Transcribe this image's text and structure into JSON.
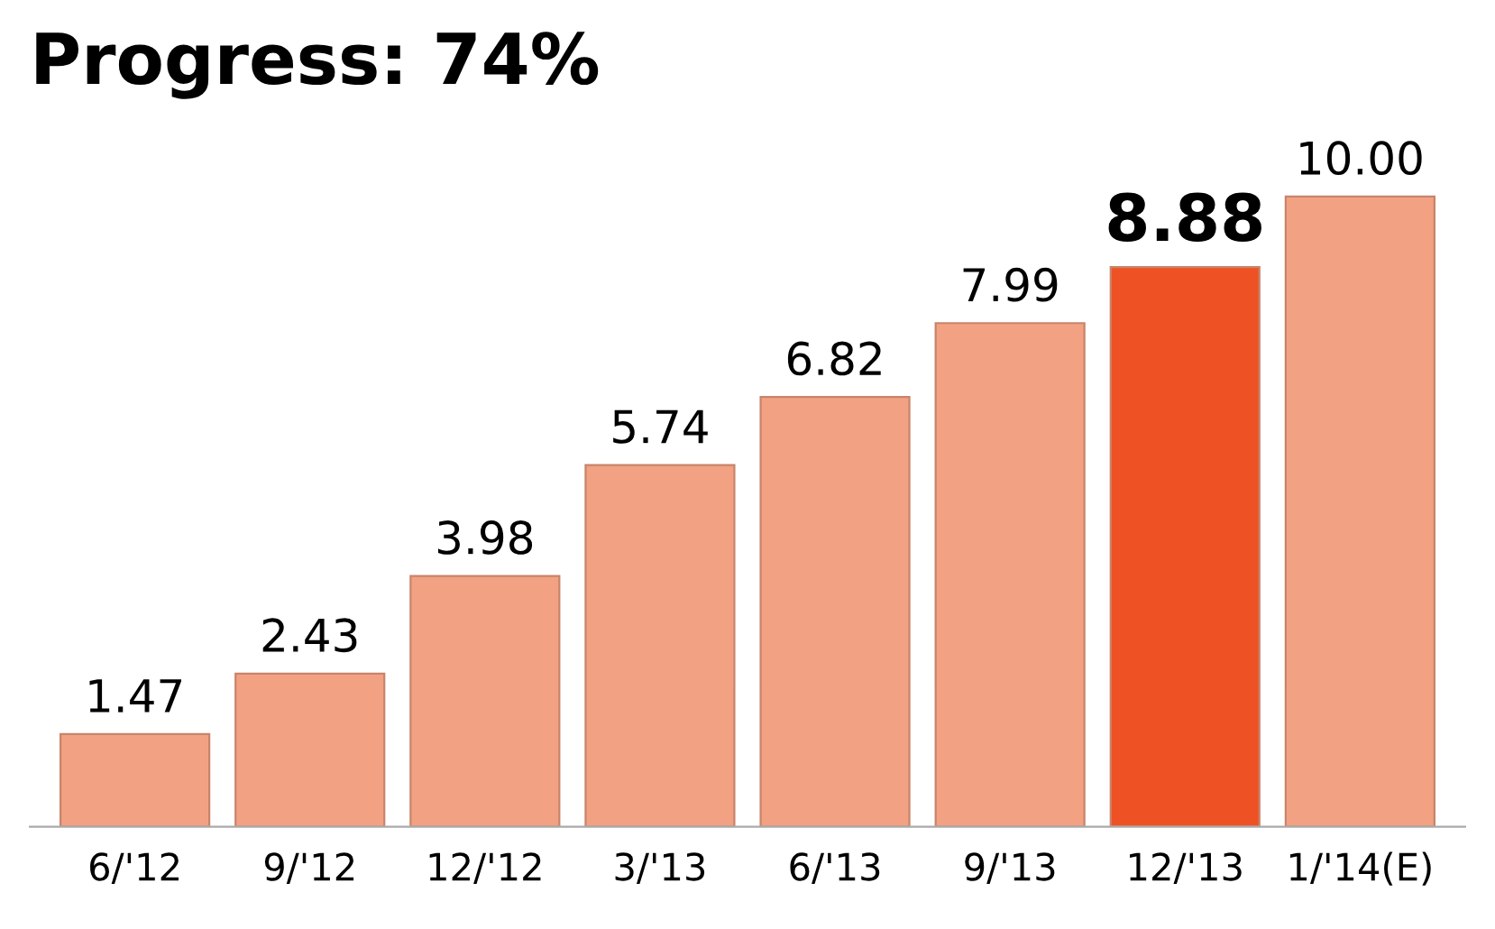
{
  "chart_data": {
    "type": "bar",
    "title": "Progress: 74%",
    "categories": [
      "6/'12",
      "9/'12",
      "12/'12",
      "3/'13",
      "6/'13",
      "9/'13",
      "12/'13",
      "1/'14(E)"
    ],
    "values": [
      1.47,
      2.43,
      3.98,
      5.74,
      6.82,
      7.99,
      8.88,
      10.0
    ],
    "value_labels": [
      "1.47",
      "2.43",
      "3.98",
      "5.74",
      "6.82",
      "7.99",
      "8.88",
      "10.00"
    ],
    "colors": [
      "#f2a283",
      "#f2a283",
      "#f2a283",
      "#f2a283",
      "#f2a283",
      "#f2a283",
      "#ee5224",
      "#f2a283"
    ],
    "grid": false,
    "legend": false
  }
}
